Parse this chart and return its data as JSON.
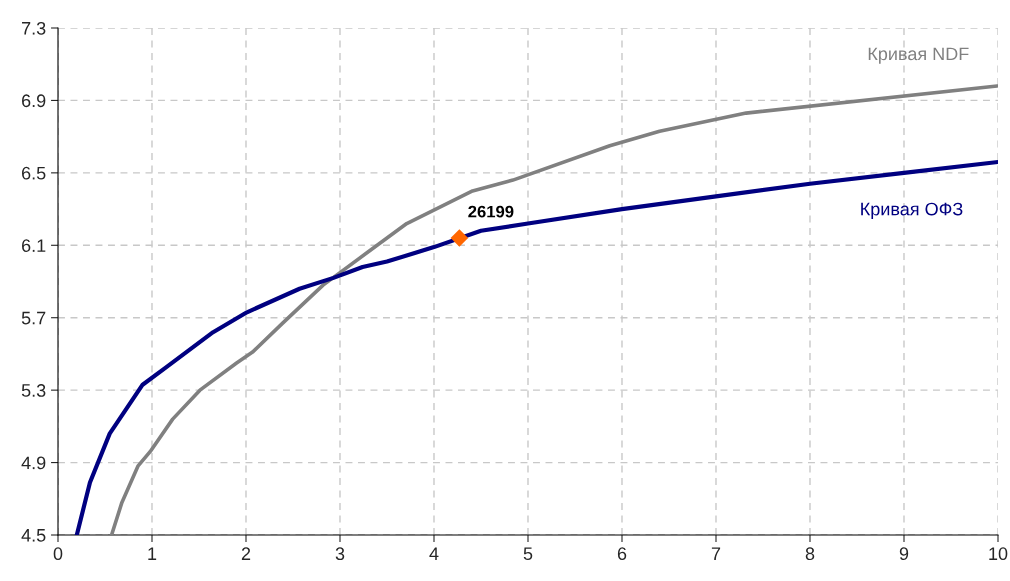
{
  "chart_data": {
    "type": "line",
    "xlim": [
      0,
      10
    ],
    "ylim": [
      4.5,
      7.3
    ],
    "xticks": [
      0,
      1,
      2,
      3,
      4,
      5,
      6,
      7,
      8,
      9,
      10
    ],
    "yticks": [
      4.5,
      4.9,
      5.3,
      5.7,
      6.1,
      6.5,
      6.9,
      7.3
    ],
    "grid": true,
    "legend": false,
    "line_style": "solid",
    "marker": "none",
    "series": [
      {
        "name": "Кривая NDF",
        "color": "#808080",
        "x": [
          0.57,
          0.68,
          0.85,
          0.98,
          1.22,
          1.51,
          1.9,
          2.07,
          2.39,
          2.82,
          3.29,
          3.71,
          4.41,
          4.84,
          5.87,
          6.4,
          7.32,
          9.99
        ],
        "values": [
          4.5,
          4.68,
          4.88,
          4.96,
          5.14,
          5.3,
          5.45,
          5.51,
          5.67,
          5.88,
          6.06,
          6.22,
          6.4,
          6.46,
          6.65,
          6.73,
          6.83,
          6.98
        ]
      },
      {
        "name": "Кривая ОФЗ",
        "color": "#000080",
        "x": [
          0.2,
          0.34,
          0.55,
          0.9,
          1.16,
          1.65,
          2.01,
          2.57,
          2.93,
          3.24,
          3.5,
          4.0,
          4.5,
          5.0,
          6.0,
          7.0,
          8.0,
          9.0,
          10.0
        ],
        "values": [
          4.5,
          4.79,
          5.06,
          5.33,
          5.43,
          5.62,
          5.73,
          5.86,
          5.92,
          5.98,
          6.01,
          6.09,
          6.18,
          6.22,
          6.3,
          6.37,
          6.44,
          6.5,
          6.56
        ]
      },
      {
        "type": "scatter",
        "color": "#ff6600",
        "marker": "diamond",
        "x": [
          4.27
        ],
        "values": [
          6.14
        ]
      }
    ],
    "annotations": [
      {
        "text": "26199",
        "x": 4.27,
        "y": 6.14
      }
    ]
  }
}
